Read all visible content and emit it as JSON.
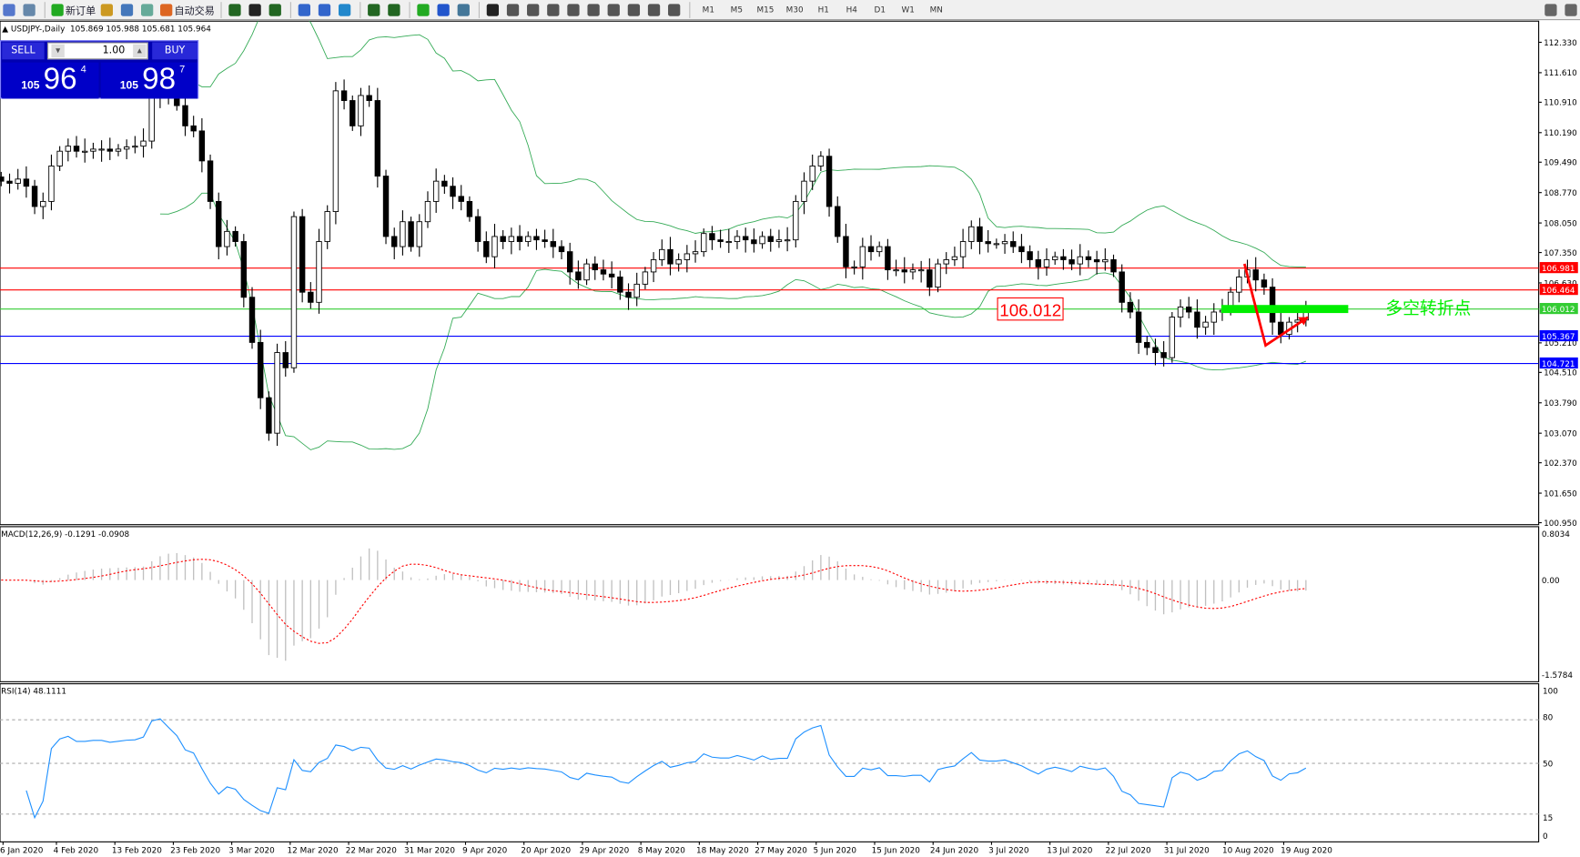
{
  "toolbar": {
    "new_order_label": "新订单",
    "auto_trading_label": "自动交易",
    "timeframes": [
      "M1",
      "M5",
      "M15",
      "M30",
      "H1",
      "H4",
      "D1",
      "W1",
      "MN"
    ],
    "icons": [
      "new-chart-icon",
      "zoom-chart-icon",
      "new-order-icon",
      "expert-icon",
      "market-icon",
      "signal-icon",
      "auto-trading-icon",
      "bar-chart-icon",
      "candle-chart-icon",
      "line-chart-icon",
      "zoom-in-icon",
      "zoom-out-icon",
      "tile-icon",
      "autoscroll-icon",
      "chart-shift-icon",
      "indicators-icon",
      "period-icon",
      "templates-icon",
      "cursor-icon",
      "crosshair-icon",
      "vline-icon",
      "hline-icon",
      "trendline-icon",
      "fib-icon",
      "channel-icon",
      "text-icon",
      "label-icon",
      "arrows-icon",
      "search-icon",
      "chat-icon"
    ]
  },
  "header": {
    "symbol": "USDJPY-,Daily",
    "ohlc": "105.869 105.988 105.681 105.964"
  },
  "trade_panel": {
    "sell_label": "SELL",
    "buy_label": "BUY",
    "lot": "1.00",
    "sell_prefix": "105",
    "sell_big": "96",
    "sell_sup": "4",
    "buy_prefix": "105",
    "buy_big": "98",
    "buy_sup": "7"
  },
  "chart_data": {
    "type": "candlestick",
    "price_ticks": [
      "112.330",
      "111.610",
      "110.910",
      "110.190",
      "109.490",
      "108.770",
      "108.050",
      "107.350",
      "106.630",
      "105.210",
      "104.510",
      "103.790",
      "103.070",
      "102.370",
      "101.650",
      "100.950"
    ],
    "ylim": [
      100.95,
      112.33
    ],
    "levels": [
      {
        "value": "106.981",
        "color": "#ff0000"
      },
      {
        "value": "106.464",
        "color": "#ff0000"
      },
      {
        "value": "106.012",
        "color": "#33cc33"
      },
      {
        "value": "105.367",
        "color": "#0000ff"
      },
      {
        "value": "104.721",
        "color": "#0000ff"
      }
    ],
    "annotation_box": "106.012",
    "annotation_text": "多空转折点",
    "date_labels": [
      "6 Jan 2020",
      "4 Feb 2020",
      "13 Feb 2020",
      "23 Feb 2020",
      "3 Mar 2020",
      "12 Mar 2020",
      "22 Mar 2020",
      "31 Mar 2020",
      "9 Apr 2020",
      "20 Apr 2020",
      "29 Apr 2020",
      "8 May 2020",
      "18 May 2020",
      "27 May 2020",
      "5 Jun 2020",
      "15 Jun 2020",
      "24 Jun 2020",
      "3 Jul 2020",
      "13 Jul 2020",
      "22 Jul 2020",
      "31 Jul 2020",
      "10 Aug 2020",
      "19 Aug 2020"
    ],
    "closes": [
      109.04,
      108.99,
      109.09,
      108.92,
      108.44,
      108.56,
      109.4,
      109.75,
      109.87,
      109.75,
      109.75,
      109.8,
      109.8,
      109.75,
      109.8,
      109.85,
      109.87,
      109.99,
      111.07,
      111.3,
      111.07,
      110.83,
      110.35,
      110.23,
      109.52,
      108.56,
      107.49,
      107.85,
      107.61,
      106.29,
      105.22,
      103.91,
      103.07,
      104.98,
      104.62,
      108.2,
      106.41,
      106.17,
      107.61,
      108.32,
      111.18,
      110.95,
      110.35,
      111.07,
      110.95,
      109.16,
      107.73,
      107.49,
      108.08,
      107.49,
      108.08,
      108.56,
      109.04,
      108.92,
      108.68,
      108.56,
      108.2,
      107.61,
      107.25,
      107.73,
      107.61,
      107.73,
      107.61,
      107.73,
      107.65,
      107.61,
      107.49,
      107.37,
      106.89,
      106.7,
      107.08,
      106.94,
      106.84,
      106.77,
      106.41,
      106.29,
      106.6,
      106.89,
      107.18,
      107.42,
      107.08,
      107.18,
      107.32,
      107.37,
      107.8,
      107.65,
      107.61,
      107.61,
      107.73,
      107.65,
      107.56,
      107.73,
      107.61,
      107.65,
      107.65,
      108.56,
      109.04,
      109.4,
      109.63,
      108.44,
      107.73,
      107.01,
      107.01,
      107.49,
      107.37,
      107.49,
      106.94,
      106.94,
      106.89,
      106.94,
      106.94,
      106.53,
      107.08,
      107.18,
      107.25,
      107.61,
      107.96,
      107.61,
      107.56,
      107.56,
      107.61,
      107.49,
      107.37,
      107.18,
      107.01,
      107.18,
      107.25,
      107.18,
      107.08,
      107.25,
      107.18,
      107.13,
      107.18,
      106.89,
      106.17,
      105.94,
      105.22,
      105.1,
      104.98,
      104.86,
      105.82,
      106.06,
      105.94,
      105.58,
      105.7,
      105.94,
      105.98,
      106.41,
      106.77,
      106.94,
      106.7,
      106.53,
      105.7,
      105.41,
      105.7,
      105.75,
      105.964
    ],
    "macd": {
      "label": "MACD(12,26,9) -0.1291 -0.0908",
      "ticks": [
        "0.8034",
        "0.00",
        "-1.5784"
      ],
      "ylim": [
        -1.5784,
        0.8034
      ]
    },
    "rsi": {
      "label": "RSI(14) 48.1111",
      "ticks": [
        "100",
        "80",
        "50",
        "15",
        "0"
      ],
      "levels": [
        80,
        50,
        15
      ]
    },
    "colors": {
      "bollinger": "#33aa55",
      "macd_hist": "#c0c0c0",
      "macd_signal": "#ff0000",
      "rsi": "#1e90ff",
      "annotation_green": "#00ee00",
      "arrow": "#ff0000"
    }
  }
}
